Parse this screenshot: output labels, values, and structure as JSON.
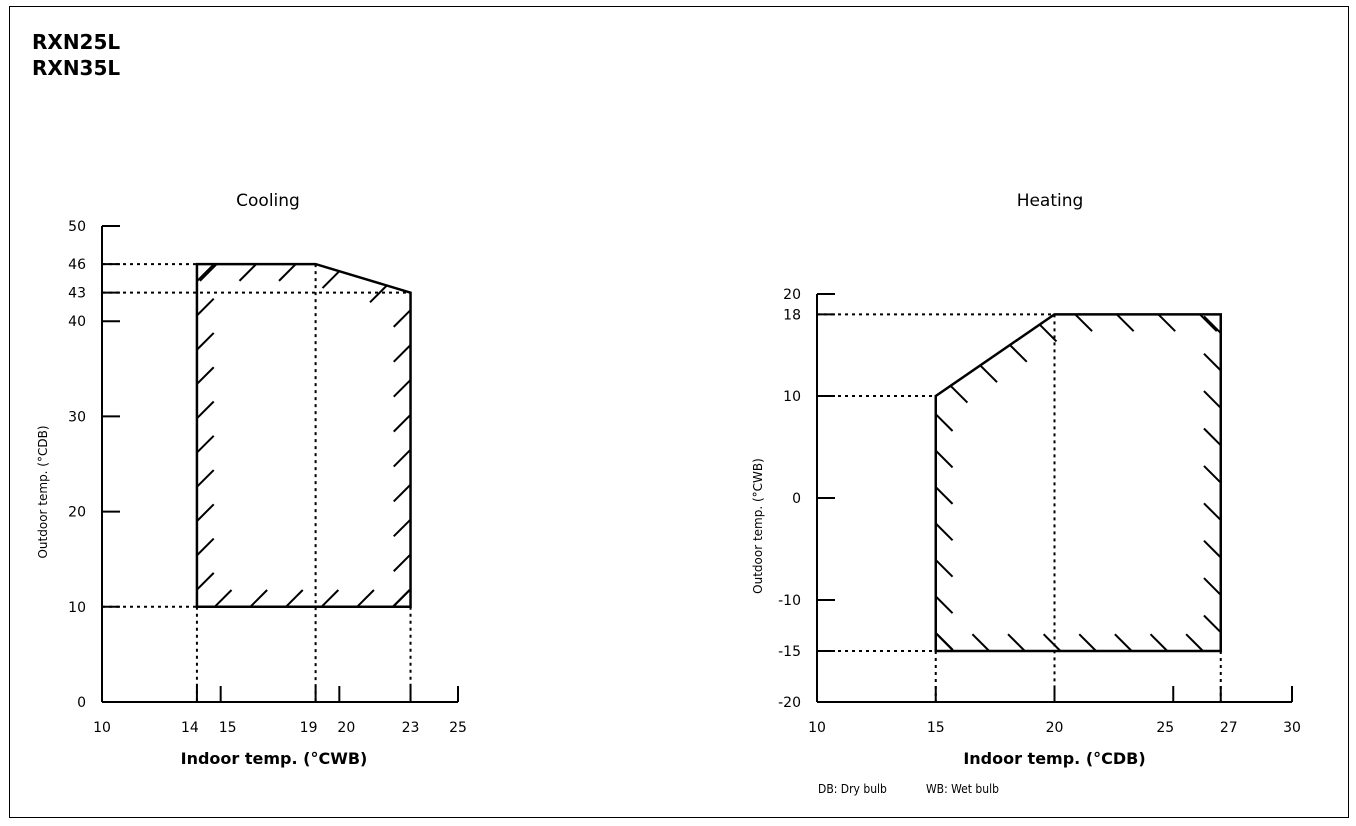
{
  "models": [
    "RXN25L",
    "RXN35L"
  ],
  "legend_notes": [
    "DB: Dry bulb",
    "WB: Wet bulb"
  ],
  "chart_data": [
    {
      "type": "area",
      "title": "Cooling",
      "xlabel": "Indoor temp. (°CWB)",
      "ylabel": "Outdoor temp. (°CDB)",
      "xlim": [
        10,
        25
      ],
      "ylim": [
        0,
        50
      ],
      "x_ticks": [
        10,
        14,
        15,
        19,
        20,
        23,
        25
      ],
      "y_ticks": [
        0,
        10,
        20,
        30,
        40,
        43,
        46,
        50
      ],
      "region": [
        [
          14,
          10
        ],
        [
          14,
          46
        ],
        [
          19,
          46
        ],
        [
          23,
          43
        ],
        [
          23,
          10
        ]
      ],
      "guides_x": [
        14,
        19,
        23
      ],
      "guides_y": [
        10,
        43,
        46
      ]
    },
    {
      "type": "area",
      "title": "Heating",
      "xlabel": "Indoor temp. (°CDB)",
      "ylabel": "Outdoor temp. (°CWB)",
      "xlim": [
        10,
        30
      ],
      "ylim": [
        -20,
        20
      ],
      "x_ticks": [
        10,
        15,
        20,
        25,
        27,
        30
      ],
      "y_ticks": [
        -20,
        -15,
        -10,
        0,
        10,
        18,
        20
      ],
      "region": [
        [
          15,
          -15
        ],
        [
          15,
          10
        ],
        [
          20,
          18
        ],
        [
          27,
          18
        ],
        [
          27,
          -15
        ]
      ],
      "guides_x": [
        15,
        20,
        27
      ],
      "guides_y": [
        -15,
        10,
        18
      ]
    }
  ]
}
